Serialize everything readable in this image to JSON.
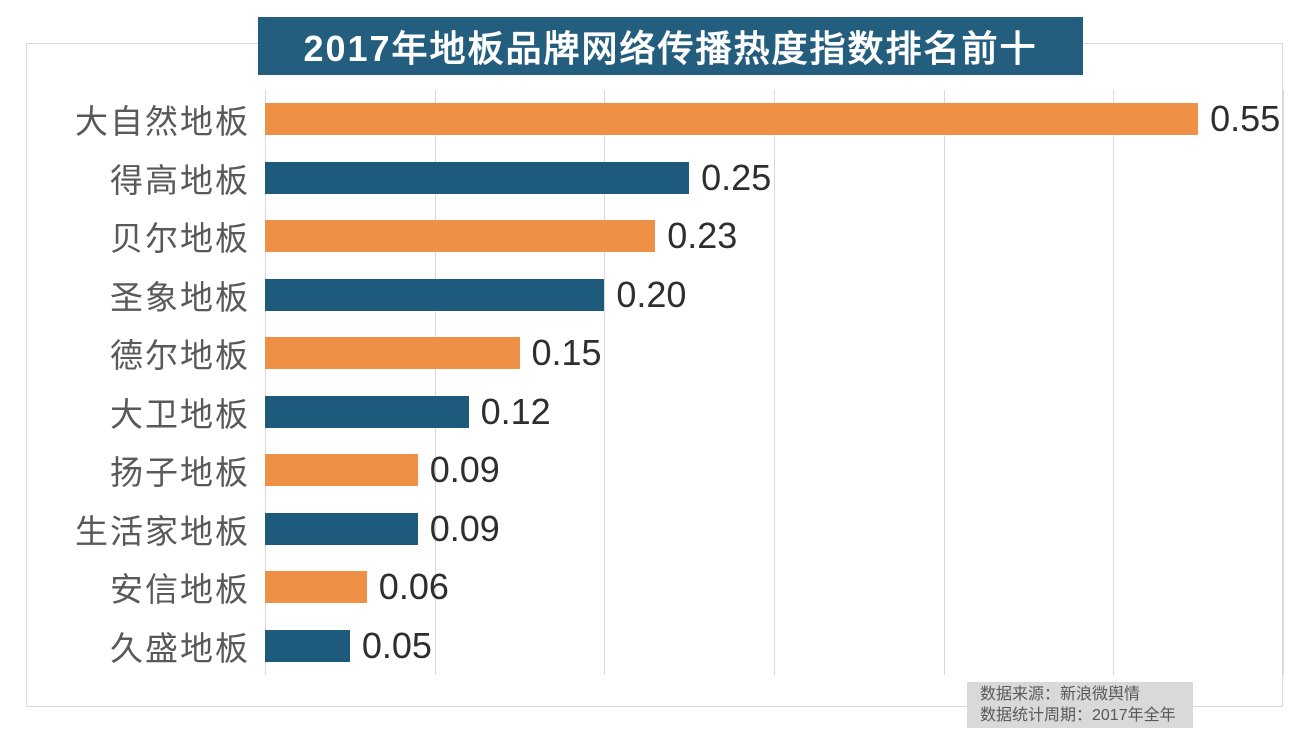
{
  "chart_data": {
    "type": "bar",
    "orientation": "horizontal",
    "title": "2017年地板品牌网络传播热度指数排名前十",
    "categories": [
      "大自然地板",
      "得高地板",
      "贝尔地板",
      "圣象地板",
      "德尔地板",
      "大卫地板",
      "扬子地板",
      "生活家地板",
      "安信地板",
      "久盛地板"
    ],
    "values": [
      0.55,
      0.25,
      0.23,
      0.2,
      0.15,
      0.12,
      0.09,
      0.09,
      0.06,
      0.05
    ],
    "value_labels": [
      "0.55",
      "0.25",
      "0.23",
      "0.20",
      "0.15",
      "0.12",
      "0.09",
      "0.09",
      "0.06",
      "0.05"
    ],
    "xlim": [
      0,
      0.6
    ],
    "grid_step": 0.1,
    "grid": true,
    "legend": "none",
    "bar_colors_alternating": [
      "#ee9147",
      "#1e5a7c"
    ],
    "source_note": [
      "数据来源：新浪微舆情",
      "数据统计周期：2017年全年"
    ]
  },
  "colors": {
    "title_background": "#245e7e",
    "title_text": "#ffffff",
    "bar_orange": "#ee9147",
    "bar_teal": "#1e5a7c",
    "gridline": "#d9d9d9",
    "frame_border": "#d9d9d9",
    "category_text": "#595959",
    "value_text": "#2e2e2e",
    "note_background": "#d9d9d9",
    "note_text": "#595959"
  }
}
